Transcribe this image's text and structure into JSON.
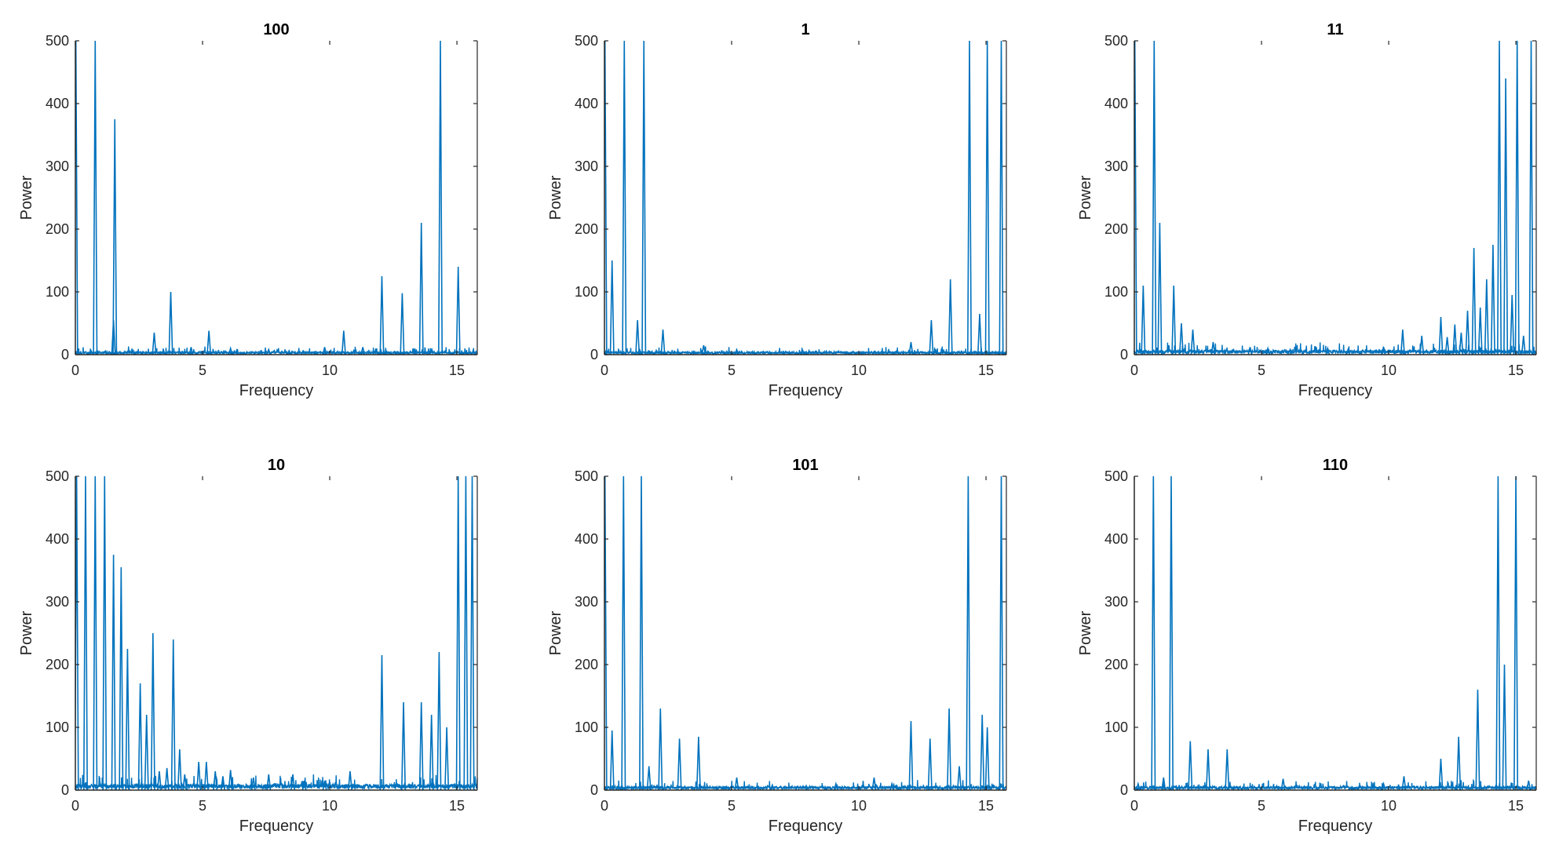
{
  "figure": {
    "colors": {
      "series": "#0072bd",
      "axis": "#262626"
    }
  },
  "chart_data": [
    {
      "type": "line",
      "title": "100",
      "xlabel": "Frequency",
      "ylabel": "Power",
      "xlim": [
        0,
        15.8
      ],
      "ylim": [
        0,
        500
      ],
      "xticks": [
        0,
        5,
        10,
        15
      ],
      "yticks": [
        0,
        100,
        200,
        300,
        400,
        500
      ],
      "peaks": [
        [
          0.02,
          500
        ],
        [
          0.78,
          500
        ],
        [
          1.5,
          55
        ],
        [
          1.55,
          375
        ],
        [
          3.1,
          35
        ],
        [
          3.75,
          100
        ],
        [
          4.55,
          12
        ],
        [
          5.25,
          38
        ],
        [
          6.1,
          10
        ],
        [
          7.6,
          8
        ],
        [
          8.4,
          6
        ],
        [
          9.8,
          12
        ],
        [
          10.55,
          38
        ],
        [
          11.3,
          12
        ],
        [
          12.05,
          125
        ],
        [
          12.85,
          98
        ],
        [
          13.6,
          210
        ],
        [
          14.35,
          500
        ],
        [
          15.05,
          140
        ]
      ],
      "baseline": 4
    },
    {
      "type": "line",
      "title": "1",
      "xlabel": "Frequency",
      "ylabel": "Power",
      "xlim": [
        0,
        15.8
      ],
      "ylim": [
        0,
        500
      ],
      "xticks": [
        0,
        5,
        10,
        15
      ],
      "yticks": [
        0,
        100,
        200,
        300,
        400,
        500
      ],
      "peaks": [
        [
          0.02,
          500
        ],
        [
          0.3,
          150
        ],
        [
          0.78,
          500
        ],
        [
          1.3,
          55
        ],
        [
          1.55,
          500
        ],
        [
          2.3,
          40
        ],
        [
          3.9,
          15
        ],
        [
          5.2,
          8
        ],
        [
          7.8,
          6
        ],
        [
          12.05,
          20
        ],
        [
          12.85,
          55
        ],
        [
          13.6,
          120
        ],
        [
          14.35,
          500
        ],
        [
          14.75,
          65
        ],
        [
          15.05,
          500
        ],
        [
          15.6,
          500
        ]
      ],
      "baseline": 4
    },
    {
      "type": "line",
      "title": "11",
      "xlabel": "Frequency",
      "ylabel": "Power",
      "xlim": [
        0,
        15.8
      ],
      "ylim": [
        0,
        500
      ],
      "xticks": [
        0,
        5,
        10,
        15
      ],
      "yticks": [
        0,
        100,
        200,
        300,
        400,
        500
      ],
      "peaks": [
        [
          0.02,
          500
        ],
        [
          0.35,
          110
        ],
        [
          0.78,
          500
        ],
        [
          1.0,
          210
        ],
        [
          1.55,
          110
        ],
        [
          1.85,
          50
        ],
        [
          2.3,
          40
        ],
        [
          3.1,
          20
        ],
        [
          4.55,
          12
        ],
        [
          5.25,
          10
        ],
        [
          7.6,
          10
        ],
        [
          8.4,
          8
        ],
        [
          9.8,
          12
        ],
        [
          10.55,
          40
        ],
        [
          11.3,
          30
        ],
        [
          12.05,
          60
        ],
        [
          12.3,
          28
        ],
        [
          12.6,
          48
        ],
        [
          12.85,
          35
        ],
        [
          13.1,
          70
        ],
        [
          13.35,
          170
        ],
        [
          13.6,
          75
        ],
        [
          13.85,
          120
        ],
        [
          14.1,
          175
        ],
        [
          14.35,
          500
        ],
        [
          14.6,
          440
        ],
        [
          14.85,
          95
        ],
        [
          15.05,
          500
        ],
        [
          15.3,
          30
        ],
        [
          15.6,
          500
        ]
      ],
      "baseline": 6
    },
    {
      "type": "line",
      "title": "10",
      "xlabel": "Frequency",
      "ylabel": "Power",
      "xlim": [
        0,
        15.8
      ],
      "ylim": [
        0,
        500
      ],
      "xticks": [
        0,
        5,
        10,
        15
      ],
      "yticks": [
        0,
        100,
        200,
        300,
        400,
        500
      ],
      "peaks": [
        [
          0.05,
          500
        ],
        [
          0.4,
          500
        ],
        [
          0.78,
          500
        ],
        [
          1.15,
          500
        ],
        [
          1.5,
          375
        ],
        [
          1.8,
          355
        ],
        [
          2.05,
          225
        ],
        [
          2.55,
          170
        ],
        [
          2.8,
          120
        ],
        [
          3.05,
          250
        ],
        [
          3.3,
          30
        ],
        [
          3.6,
          35
        ],
        [
          3.85,
          240
        ],
        [
          4.1,
          65
        ],
        [
          4.3,
          25
        ],
        [
          4.85,
          45
        ],
        [
          5.15,
          45
        ],
        [
          5.5,
          30
        ],
        [
          5.8,
          22
        ],
        [
          6.1,
          32
        ],
        [
          7.0,
          20
        ],
        [
          7.6,
          25
        ],
        [
          8.55,
          25
        ],
        [
          9.0,
          15
        ],
        [
          9.8,
          15
        ],
        [
          10.8,
          30
        ],
        [
          12.05,
          215
        ],
        [
          12.9,
          140
        ],
        [
          13.6,
          140
        ],
        [
          14.0,
          120
        ],
        [
          14.3,
          220
        ],
        [
          14.6,
          100
        ],
        [
          15.05,
          500
        ],
        [
          15.35,
          500
        ],
        [
          15.6,
          500
        ]
      ],
      "baseline": 8
    },
    {
      "type": "line",
      "title": "101",
      "xlabel": "Frequency",
      "ylabel": "Power",
      "xlim": [
        0,
        15.8
      ],
      "ylim": [
        0,
        500
      ],
      "xticks": [
        0,
        5,
        10,
        15
      ],
      "yticks": [
        0,
        100,
        200,
        300,
        400,
        500
      ],
      "peaks": [
        [
          0.02,
          500
        ],
        [
          0.3,
          95
        ],
        [
          0.75,
          500
        ],
        [
          1.45,
          500
        ],
        [
          1.75,
          38
        ],
        [
          2.2,
          130
        ],
        [
          2.95,
          82
        ],
        [
          3.7,
          85
        ],
        [
          5.2,
          20
        ],
        [
          6.6,
          8
        ],
        [
          9.1,
          10
        ],
        [
          10.6,
          20
        ],
        [
          11.3,
          10
        ],
        [
          12.05,
          110
        ],
        [
          12.8,
          82
        ],
        [
          13.55,
          130
        ],
        [
          13.95,
          38
        ],
        [
          14.3,
          500
        ],
        [
          14.85,
          120
        ],
        [
          15.05,
          100
        ],
        [
          15.6,
          500
        ]
      ],
      "baseline": 5
    },
    {
      "type": "line",
      "title": "110",
      "xlabel": "Frequency",
      "ylabel": "Power",
      "xlim": [
        0,
        15.8
      ],
      "ylim": [
        0,
        500
      ],
      "xticks": [
        0,
        5,
        10,
        15
      ],
      "yticks": [
        0,
        100,
        200,
        300,
        400,
        500
      ],
      "peaks": [
        [
          0.15,
          10
        ],
        [
          0.75,
          500
        ],
        [
          1.15,
          20
        ],
        [
          1.45,
          500
        ],
        [
          2.2,
          78
        ],
        [
          2.9,
          65
        ],
        [
          3.65,
          65
        ],
        [
          5.85,
          18
        ],
        [
          9.8,
          10
        ],
        [
          10.6,
          22
        ],
        [
          12.05,
          50
        ],
        [
          12.75,
          85
        ],
        [
          13.5,
          160
        ],
        [
          14.3,
          500
        ],
        [
          14.55,
          200
        ],
        [
          15.0,
          500
        ],
        [
          15.5,
          15
        ]
      ],
      "baseline": 5
    }
  ]
}
